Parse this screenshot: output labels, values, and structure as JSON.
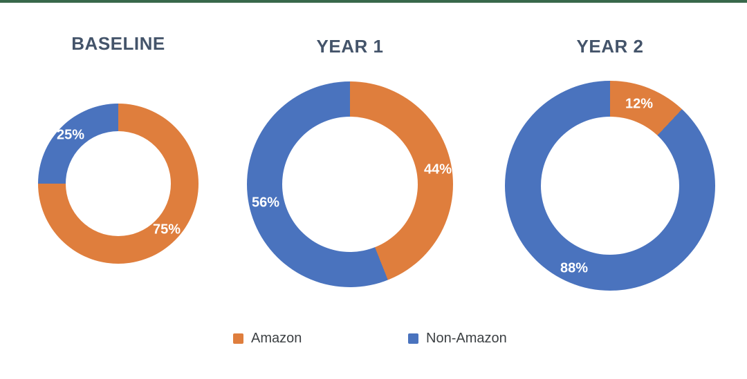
{
  "page": {
    "background_color": "#FFFFFF",
    "top_bar_color": "#38684B",
    "title_color": "#44546A"
  },
  "chart_data": [
    {
      "type": "pie",
      "subtype": "donut",
      "title": "BASELINE",
      "categories": [
        "Amazon",
        "Non-Amazon"
      ],
      "values": [
        75,
        25
      ],
      "value_labels": [
        "75%",
        "25%"
      ],
      "colors": [
        "#DF7E3D",
        "#4A73BE"
      ],
      "data_label_color": "#FFFFFF",
      "start_angle_deg": 0,
      "direction": "clockwise",
      "legend": "shared-bottom"
    },
    {
      "type": "pie",
      "subtype": "donut",
      "title": "YEAR 1",
      "categories": [
        "Amazon",
        "Non-Amazon"
      ],
      "values": [
        44,
        56
      ],
      "value_labels": [
        "44%",
        "56%"
      ],
      "colors": [
        "#DF7E3D",
        "#4A73BE"
      ],
      "data_label_color": "#FFFFFF",
      "start_angle_deg": 0,
      "direction": "clockwise",
      "legend": "shared-bottom"
    },
    {
      "type": "pie",
      "subtype": "donut",
      "title": "YEAR 2",
      "categories": [
        "Amazon",
        "Non-Amazon"
      ],
      "values": [
        12,
        88
      ],
      "value_labels": [
        "12%",
        "88%"
      ],
      "colors": [
        "#DF7E3D",
        "#4A73BE"
      ],
      "data_label_color": "#FFFFFF",
      "start_angle_deg": 0,
      "direction": "clockwise",
      "legend": "shared-bottom"
    }
  ],
  "legend": {
    "items": [
      {
        "label": "Amazon",
        "color": "#DF7E3D"
      },
      {
        "label": "Non-Amazon",
        "color": "#4A73BE"
      }
    ]
  }
}
